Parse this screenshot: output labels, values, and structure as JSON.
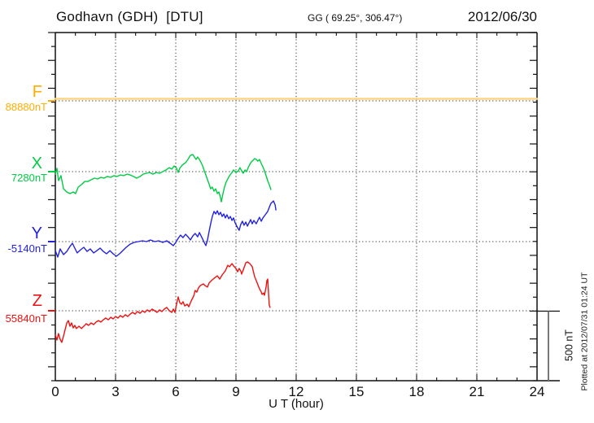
{
  "header": {
    "station": "Godhavn (GDH)  [DTU]",
    "coords": "GG ( 69.25°, 306.47°)",
    "date": "2012/06/30"
  },
  "x_axis": {
    "label": "U T (hour)",
    "ticks": [
      0,
      3,
      6,
      9,
      12,
      15,
      18,
      21,
      24
    ],
    "range_hours": [
      0,
      24
    ],
    "minor_tick_every_hours": 1
  },
  "scale_bar": {
    "label": "500 nT",
    "nT": 500
  },
  "footer_note": "Plotted at 2012/07/31 01:24 UT",
  "colors": {
    "F": "#FFAE00",
    "F_line": "#FFD584",
    "X": "#00CC44",
    "Y": "#2222DD",
    "Z": "#EE1111",
    "grid": "#3a3a3a",
    "axis": "#111111",
    "scalebar": "#777777"
  },
  "components": [
    {
      "key": "F",
      "label": "F",
      "baseline_label": "88880nT",
      "baseline_nT": 88880
    },
    {
      "key": "X",
      "label": "X",
      "baseline_label": "7280nT",
      "baseline_nT": 7280
    },
    {
      "key": "Y",
      "label": "Y",
      "baseline_label": "-5140nT",
      "baseline_nT": -5140
    },
    {
      "key": "Z",
      "label": "Z",
      "baseline_label": "55840nT",
      "baseline_nT": 55840
    }
  ],
  "chart_data": {
    "type": "line",
    "title": "Godhavn (GDH) [DTU] magnetogram 2012/06/30",
    "xlabel": "U T (hour)",
    "x_range_hours": [
      0,
      24
    ],
    "grid": "dotted vertical every 3 h, dotted horizontal at each component baseline",
    "scale": "500 nT reference bar at right",
    "units": "nT",
    "legend_position": "left margin (F, X, Y, Z with baseline values)",
    "series": [
      {
        "name": "F",
        "baseline_nT": 88880,
        "points": [
          [
            0,
            88895
          ],
          [
            24,
            88895
          ]
        ]
      },
      {
        "name": "X",
        "baseline_nT": 7280,
        "points": [
          [
            0,
            7262
          ],
          [
            0.08,
            7304
          ],
          [
            0.16,
            7215
          ],
          [
            0.28,
            7251
          ],
          [
            0.41,
            7156
          ],
          [
            0.57,
            7133
          ],
          [
            0.73,
            7121
          ],
          [
            0.89,
            7133
          ],
          [
            1.01,
            7121
          ],
          [
            1.14,
            7168
          ],
          [
            1.3,
            7186
          ],
          [
            1.46,
            7209
          ],
          [
            1.62,
            7209
          ],
          [
            1.78,
            7221
          ],
          [
            1.95,
            7233
          ],
          [
            2.11,
            7227
          ],
          [
            2.27,
            7239
          ],
          [
            2.43,
            7233
          ],
          [
            2.59,
            7245
          ],
          [
            2.76,
            7239
          ],
          [
            2.92,
            7251
          ],
          [
            3.08,
            7245
          ],
          [
            3.24,
            7256
          ],
          [
            3.41,
            7251
          ],
          [
            3.57,
            7262
          ],
          [
            3.73,
            7256
          ],
          [
            3.89,
            7245
          ],
          [
            4.05,
            7233
          ],
          [
            4.22,
            7245
          ],
          [
            4.38,
            7262
          ],
          [
            4.54,
            7268
          ],
          [
            4.7,
            7274
          ],
          [
            4.86,
            7262
          ],
          [
            5.03,
            7274
          ],
          [
            5.19,
            7268
          ],
          [
            5.35,
            7280
          ],
          [
            5.51,
            7292
          ],
          [
            5.68,
            7309
          ],
          [
            5.8,
            7298
          ],
          [
            5.92,
            7321
          ],
          [
            6.04,
            7304
          ],
          [
            6.12,
            7274
          ],
          [
            6.2,
            7304
          ],
          [
            6.32,
            7327
          ],
          [
            6.49,
            7345
          ],
          [
            6.61,
            7368
          ],
          [
            6.73,
            7398
          ],
          [
            6.85,
            7404
          ],
          [
            6.93,
            7386
          ],
          [
            7.01,
            7368
          ],
          [
            7.09,
            7386
          ],
          [
            7.18,
            7368
          ],
          [
            7.26,
            7345
          ],
          [
            7.34,
            7321
          ],
          [
            7.42,
            7286
          ],
          [
            7.5,
            7256
          ],
          [
            7.58,
            7221
          ],
          [
            7.66,
            7192
          ],
          [
            7.74,
            7156
          ],
          [
            7.82,
            7168
          ],
          [
            7.91,
            7139
          ],
          [
            7.99,
            7156
          ],
          [
            8.07,
            7121
          ],
          [
            8.15,
            7133
          ],
          [
            8.23,
            7092
          ],
          [
            8.27,
            7062
          ],
          [
            8.35,
            7121
          ],
          [
            8.43,
            7168
          ],
          [
            8.51,
            7204
          ],
          [
            8.59,
            7227
          ],
          [
            8.68,
            7251
          ],
          [
            8.8,
            7274
          ],
          [
            8.88,
            7292
          ],
          [
            9.0,
            7274
          ],
          [
            9.12,
            7286
          ],
          [
            9.2,
            7309
          ],
          [
            9.28,
            7286
          ],
          [
            9.36,
            7268
          ],
          [
            9.45,
            7292
          ],
          [
            9.53,
            7280
          ],
          [
            9.61,
            7309
          ],
          [
            9.69,
            7333
          ],
          [
            9.77,
            7351
          ],
          [
            9.85,
            7362
          ],
          [
            9.93,
            7374
          ],
          [
            10.01,
            7368
          ],
          [
            10.09,
            7356
          ],
          [
            10.17,
            7368
          ],
          [
            10.26,
            7339
          ],
          [
            10.34,
            7315
          ],
          [
            10.42,
            7286
          ],
          [
            10.5,
            7251
          ],
          [
            10.58,
            7215
          ],
          [
            10.66,
            7186
          ],
          [
            10.74,
            7151
          ]
        ]
      },
      {
        "name": "Y",
        "baseline_nT": -5140,
        "points": [
          [
            0,
            -5205
          ],
          [
            0.12,
            -5252
          ],
          [
            0.24,
            -5193
          ],
          [
            0.41,
            -5234
          ],
          [
            0.57,
            -5211
          ],
          [
            0.73,
            -5175
          ],
          [
            0.85,
            -5152
          ],
          [
            0.97,
            -5187
          ],
          [
            1.09,
            -5222
          ],
          [
            1.26,
            -5199
          ],
          [
            1.42,
            -5181
          ],
          [
            1.58,
            -5211
          ],
          [
            1.74,
            -5193
          ],
          [
            1.91,
            -5222
          ],
          [
            2.07,
            -5205
          ],
          [
            2.23,
            -5187
          ],
          [
            2.39,
            -5211
          ],
          [
            2.55,
            -5228
          ],
          [
            2.72,
            -5205
          ],
          [
            2.88,
            -5228
          ],
          [
            3.04,
            -5246
          ],
          [
            3.2,
            -5228
          ],
          [
            3.36,
            -5205
          ],
          [
            3.53,
            -5181
          ],
          [
            3.73,
            -5158
          ],
          [
            3.93,
            -5146
          ],
          [
            4.14,
            -5140
          ],
          [
            4.34,
            -5134
          ],
          [
            4.54,
            -5140
          ],
          [
            4.74,
            -5128
          ],
          [
            4.95,
            -5140
          ],
          [
            5.15,
            -5134
          ],
          [
            5.35,
            -5146
          ],
          [
            5.55,
            -5134
          ],
          [
            5.72,
            -5152
          ],
          [
            5.88,
            -5169
          ],
          [
            6.0,
            -5146
          ],
          [
            6.12,
            -5116
          ],
          [
            6.24,
            -5093
          ],
          [
            6.36,
            -5111
          ],
          [
            6.49,
            -5087
          ],
          [
            6.61,
            -5105
          ],
          [
            6.73,
            -5128
          ],
          [
            6.85,
            -5099
          ],
          [
            6.97,
            -5081
          ],
          [
            7.09,
            -5105
          ],
          [
            7.18,
            -5075
          ],
          [
            7.3,
            -5111
          ],
          [
            7.42,
            -5146
          ],
          [
            7.5,
            -5169
          ],
          [
            7.58,
            -5128
          ],
          [
            7.66,
            -5069
          ],
          [
            7.74,
            -5011
          ],
          [
            7.82,
            -4958
          ],
          [
            7.91,
            -4922
          ],
          [
            7.99,
            -4940
          ],
          [
            8.07,
            -4917
          ],
          [
            8.15,
            -4946
          ],
          [
            8.23,
            -4928
          ],
          [
            8.31,
            -4958
          ],
          [
            8.39,
            -4940
          ],
          [
            8.47,
            -4969
          ],
          [
            8.55,
            -4946
          ],
          [
            8.64,
            -4975
          ],
          [
            8.72,
            -4958
          ],
          [
            8.8,
            -4987
          ],
          [
            8.88,
            -4969
          ],
          [
            8.96,
            -5005
          ],
          [
            9.08,
            -5040
          ],
          [
            9.16,
            -5058
          ],
          [
            9.24,
            -5016
          ],
          [
            9.32,
            -4993
          ],
          [
            9.4,
            -5022
          ],
          [
            9.49,
            -4999
          ],
          [
            9.57,
            -5028
          ],
          [
            9.65,
            -5005
          ],
          [
            9.73,
            -4981
          ],
          [
            9.81,
            -5011
          ],
          [
            9.89,
            -4987
          ],
          [
            10.01,
            -5011
          ],
          [
            10.09,
            -4987
          ],
          [
            10.17,
            -4964
          ],
          [
            10.26,
            -4993
          ],
          [
            10.34,
            -4969
          ],
          [
            10.46,
            -4946
          ],
          [
            10.58,
            -4922
          ],
          [
            10.66,
            -4893
          ],
          [
            10.74,
            -4864
          ],
          [
            10.87,
            -4846
          ],
          [
            10.95,
            -4875
          ],
          [
            10.99,
            -4911
          ]
        ]
      },
      {
        "name": "Z",
        "baseline_nT": 55840,
        "points": [
          [
            0,
            55664
          ],
          [
            0.08,
            55628
          ],
          [
            0.16,
            55675
          ],
          [
            0.24,
            55634
          ],
          [
            0.32,
            55611
          ],
          [
            0.41,
            55658
          ],
          [
            0.49,
            55705
          ],
          [
            0.57,
            55752
          ],
          [
            0.65,
            55769
          ],
          [
            0.73,
            55728
          ],
          [
            0.81,
            55752
          ],
          [
            0.89,
            55716
          ],
          [
            0.97,
            55734
          ],
          [
            1.05,
            55711
          ],
          [
            1.18,
            55728
          ],
          [
            1.3,
            55711
          ],
          [
            1.42,
            55728
          ],
          [
            1.54,
            55746
          ],
          [
            1.66,
            55734
          ],
          [
            1.78,
            55752
          ],
          [
            1.91,
            55740
          ],
          [
            2.03,
            55758
          ],
          [
            2.15,
            55769
          ],
          [
            2.27,
            55758
          ],
          [
            2.39,
            55775
          ],
          [
            2.51,
            55787
          ],
          [
            2.64,
            55775
          ],
          [
            2.76,
            55793
          ],
          [
            2.88,
            55781
          ],
          [
            3.0,
            55799
          ],
          [
            3.12,
            55787
          ],
          [
            3.24,
            55805
          ],
          [
            3.36,
            55793
          ],
          [
            3.49,
            55811
          ],
          [
            3.61,
            55799
          ],
          [
            3.73,
            55816
          ],
          [
            3.85,
            55828
          ],
          [
            3.97,
            55816
          ],
          [
            4.09,
            55834
          ],
          [
            4.22,
            55822
          ],
          [
            4.34,
            55840
          ],
          [
            4.46,
            55828
          ],
          [
            4.58,
            55846
          ],
          [
            4.7,
            55834
          ],
          [
            4.82,
            55852
          ],
          [
            4.95,
            55840
          ],
          [
            5.07,
            55828
          ],
          [
            5.19,
            55846
          ],
          [
            5.31,
            55834
          ],
          [
            5.43,
            55852
          ],
          [
            5.55,
            55864
          ],
          [
            5.68,
            55840
          ],
          [
            5.8,
            55828
          ],
          [
            5.88,
            55852
          ],
          [
            5.96,
            55828
          ],
          [
            6.04,
            55887
          ],
          [
            6.12,
            55940
          ],
          [
            6.2,
            55899
          ],
          [
            6.28,
            55887
          ],
          [
            6.36,
            55905
          ],
          [
            6.45,
            55875
          ],
          [
            6.57,
            55887
          ],
          [
            6.65,
            55869
          ],
          [
            6.77,
            55911
          ],
          [
            6.89,
            55946
          ],
          [
            6.97,
            55987
          ],
          [
            7.05,
            55975
          ],
          [
            7.13,
            56005
          ],
          [
            7.22,
            56022
          ],
          [
            7.3,
            56028
          ],
          [
            7.38,
            56034
          ],
          [
            7.46,
            56022
          ],
          [
            7.58,
            56011
          ],
          [
            7.66,
            56040
          ],
          [
            7.78,
            56058
          ],
          [
            7.91,
            56075
          ],
          [
            8.07,
            56093
          ],
          [
            8.19,
            56069
          ],
          [
            8.31,
            56099
          ],
          [
            8.47,
            56128
          ],
          [
            8.59,
            56169
          ],
          [
            8.68,
            56158
          ],
          [
            8.8,
            56181
          ],
          [
            8.88,
            56164
          ],
          [
            9.0,
            56146
          ],
          [
            9.08,
            56122
          ],
          [
            9.16,
            56146
          ],
          [
            9.24,
            56128
          ],
          [
            9.28,
            56105
          ],
          [
            9.36,
            56134
          ],
          [
            9.49,
            56187
          ],
          [
            9.57,
            56193
          ],
          [
            9.69,
            56181
          ],
          [
            9.81,
            56158
          ],
          [
            9.93,
            56087
          ],
          [
            10.01,
            56058
          ],
          [
            10.09,
            56028
          ],
          [
            10.17,
            55999
          ],
          [
            10.26,
            55975
          ],
          [
            10.3,
            55958
          ],
          [
            10.38,
            55969
          ],
          [
            10.42,
            55952
          ],
          [
            10.5,
            56011
          ],
          [
            10.54,
            56058
          ],
          [
            10.58,
            56069
          ],
          [
            10.62,
            55969
          ],
          [
            10.66,
            55881
          ],
          [
            10.7,
            55864
          ]
        ]
      }
    ]
  }
}
